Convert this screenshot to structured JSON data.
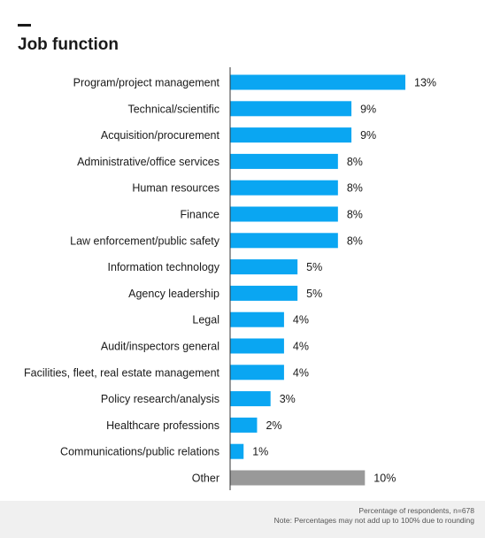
{
  "header": {
    "title": "Job function"
  },
  "footer": {
    "line1": "Percentage of respondents, n=678",
    "line2": "Note: Percentages may not add up to 100% due to rounding"
  },
  "colors": {
    "bar": "#0aa6f2",
    "other_bar": "#999999",
    "axis": "#333333",
    "text": "#1a1a1a"
  },
  "chart_data": {
    "type": "bar",
    "orientation": "horizontal",
    "title": "Job function",
    "categories": [
      "Program/project management",
      "Technical/scientific",
      "Acquisition/procurement",
      "Administrative/office services",
      "Human resources",
      "Finance",
      "Law enforcement/public safety",
      "Information technology",
      "Agency leadership",
      "Legal",
      "Audit/inspectors general",
      "Facilities, fleet, real estate management",
      "Policy research/analysis",
      "Healthcare professions",
      "Communications/public relations",
      "Other"
    ],
    "values": [
      13,
      9,
      9,
      8,
      8,
      8,
      8,
      5,
      5,
      4,
      4,
      4,
      3,
      2,
      1,
      10
    ],
    "value_labels": [
      "13%",
      "9%",
      "9%",
      "8%",
      "8%",
      "8%",
      "8%",
      "5%",
      "5%",
      "4%",
      "4%",
      "4%",
      "3%",
      "2%",
      "1%",
      "10%"
    ],
    "unit": "%",
    "xlim": [
      0,
      13
    ],
    "grid": false,
    "legend": "none"
  }
}
